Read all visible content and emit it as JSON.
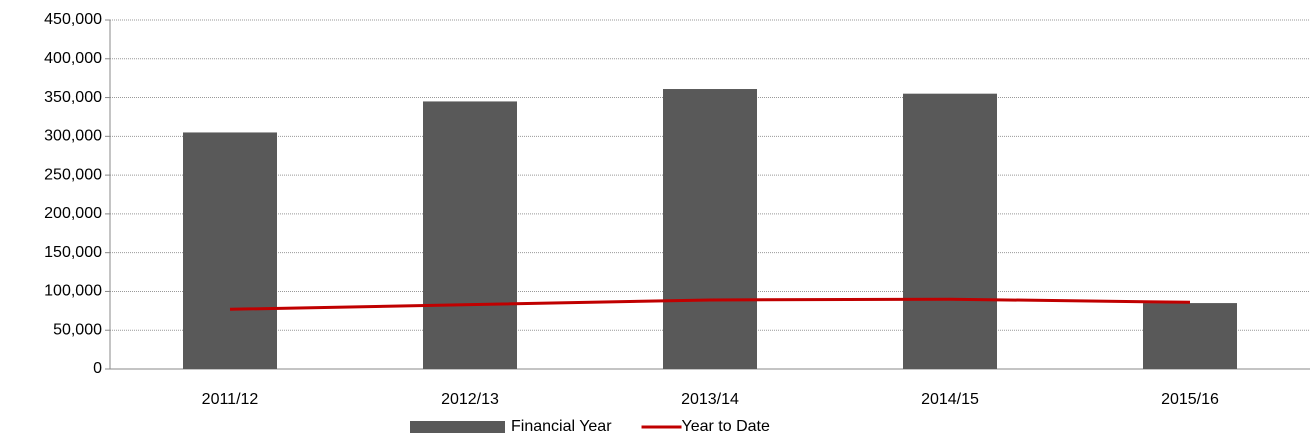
{
  "chart_data": {
    "type": "bar",
    "categories": [
      "2011/12",
      "2012/13",
      "2013/14",
      "2014/15",
      "2015/16"
    ],
    "series": [
      {
        "name": "Financial Year",
        "type": "bar",
        "color": "#595959",
        "values": [
          305000,
          345000,
          361000,
          355000,
          85000
        ]
      },
      {
        "name": "Year to Date",
        "type": "line",
        "color": "#c00000",
        "values": [
          77000,
          83000,
          89000,
          90000,
          86000
        ]
      }
    ],
    "ylim": [
      0,
      450000
    ],
    "yticks": [
      0,
      {
        "value": 50000,
        "label": "50,000"
      },
      {
        "value": 100000,
        "label": "100,000"
      },
      {
        "value": 150000,
        "label": "150,000"
      },
      {
        "value": 200000,
        "label": "200,000"
      },
      {
        "value": 250000,
        "label": "250,000"
      },
      {
        "value": 300000,
        "label": "300,000"
      },
      {
        "value": 350000,
        "label": "350,000"
      },
      {
        "value": 400000,
        "label": "400,000"
      },
      {
        "value": 450000,
        "label": "450,000"
      }
    ],
    "grid": true,
    "legend": "bottom"
  }
}
